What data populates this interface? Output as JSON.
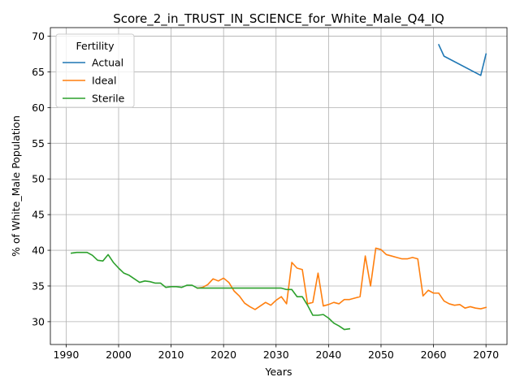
{
  "chart_data": {
    "type": "line",
    "title": "Score_2_in_TRUST_IN_SCIENCE_for_White_Male_Q4_IQ",
    "xlabel": "Years",
    "ylabel": "% of White_Male Population",
    "xlim": [
      1987,
      2074
    ],
    "ylim": [
      26.8,
      71.2
    ],
    "xticks": [
      1990,
      2000,
      2010,
      2020,
      2030,
      2040,
      2050,
      2060,
      2070
    ],
    "yticks": [
      30,
      35,
      40,
      45,
      50,
      55,
      60,
      65,
      70
    ],
    "grid": true,
    "legend": {
      "title": "Fertility",
      "position": "top-left"
    },
    "series": [
      {
        "name": "Actual",
        "color": "#1f77b4",
        "points": [
          [
            2061,
            68.8
          ],
          [
            2062,
            67.2
          ],
          [
            2069,
            64.5
          ],
          [
            2070,
            67.5
          ]
        ]
      },
      {
        "name": "Ideal",
        "color": "#ff7f0e",
        "points": [
          [
            2015,
            34.7
          ],
          [
            2016,
            34.8
          ],
          [
            2017,
            35.2
          ],
          [
            2018,
            36.0
          ],
          [
            2019,
            35.7
          ],
          [
            2020,
            36.1
          ],
          [
            2021,
            35.5
          ],
          [
            2022,
            34.3
          ],
          [
            2023,
            33.6
          ],
          [
            2024,
            32.6
          ],
          [
            2025,
            32.1
          ],
          [
            2026,
            31.7
          ],
          [
            2027,
            32.2
          ],
          [
            2028,
            32.7
          ],
          [
            2029,
            32.3
          ],
          [
            2030,
            33.0
          ],
          [
            2031,
            33.5
          ],
          [
            2032,
            32.5
          ],
          [
            2033,
            38.3
          ],
          [
            2034,
            37.5
          ],
          [
            2035,
            37.3
          ],
          [
            2036,
            32.5
          ],
          [
            2037,
            32.7
          ],
          [
            2038,
            36.8
          ],
          [
            2039,
            32.2
          ],
          [
            2040,
            32.4
          ],
          [
            2041,
            32.7
          ],
          [
            2042,
            32.5
          ],
          [
            2043,
            33.1
          ],
          [
            2044,
            33.1
          ],
          [
            2045,
            33.3
          ],
          [
            2046,
            33.5
          ],
          [
            2047,
            39.2
          ],
          [
            2048,
            35.0
          ],
          [
            2049,
            40.3
          ],
          [
            2050,
            40.1
          ],
          [
            2051,
            39.4
          ],
          [
            2052,
            39.2
          ],
          [
            2053,
            39.0
          ],
          [
            2054,
            38.8
          ],
          [
            2055,
            38.8
          ],
          [
            2056,
            39.0
          ],
          [
            2057,
            38.8
          ],
          [
            2058,
            33.6
          ],
          [
            2059,
            34.4
          ],
          [
            2060,
            34.0
          ],
          [
            2061,
            34.0
          ],
          [
            2062,
            32.9
          ],
          [
            2063,
            32.5
          ],
          [
            2064,
            32.3
          ],
          [
            2065,
            32.4
          ],
          [
            2066,
            31.9
          ],
          [
            2067,
            32.1
          ],
          [
            2068,
            31.9
          ],
          [
            2069,
            31.8
          ],
          [
            2070,
            32.0
          ]
        ]
      },
      {
        "name": "Sterile",
        "color": "#2ca02c",
        "points": [
          [
            1991,
            39.6
          ],
          [
            1992,
            39.7
          ],
          [
            1993,
            39.7
          ],
          [
            1994,
            39.7
          ],
          [
            1995,
            39.3
          ],
          [
            1996,
            38.6
          ],
          [
            1997,
            38.5
          ],
          [
            1998,
            39.4
          ],
          [
            1999,
            38.3
          ],
          [
            2000,
            37.5
          ],
          [
            2001,
            36.8
          ],
          [
            2002,
            36.5
          ],
          [
            2003,
            36.0
          ],
          [
            2004,
            35.5
          ],
          [
            2005,
            35.7
          ],
          [
            2006,
            35.6
          ],
          [
            2007,
            35.4
          ],
          [
            2008,
            35.4
          ],
          [
            2009,
            34.8
          ],
          [
            2010,
            34.9
          ],
          [
            2011,
            34.9
          ],
          [
            2012,
            34.8
          ],
          [
            2013,
            35.1
          ],
          [
            2014,
            35.1
          ],
          [
            2015,
            34.7
          ],
          [
            2016,
            34.7
          ],
          [
            2017,
            34.7
          ],
          [
            2018,
            34.7
          ],
          [
            2019,
            34.7
          ],
          [
            2020,
            34.7
          ],
          [
            2021,
            34.7
          ],
          [
            2022,
            34.7
          ],
          [
            2023,
            34.7
          ],
          [
            2024,
            34.7
          ],
          [
            2025,
            34.7
          ],
          [
            2026,
            34.7
          ],
          [
            2027,
            34.7
          ],
          [
            2028,
            34.7
          ],
          [
            2029,
            34.7
          ],
          [
            2030,
            34.7
          ],
          [
            2031,
            34.7
          ],
          [
            2032,
            34.5
          ],
          [
            2033,
            34.5
          ],
          [
            2034,
            33.5
          ],
          [
            2035,
            33.5
          ],
          [
            2036,
            32.3
          ],
          [
            2037,
            30.9
          ],
          [
            2038,
            30.9
          ],
          [
            2039,
            31.0
          ],
          [
            2040,
            30.5
          ],
          [
            2041,
            29.8
          ],
          [
            2042,
            29.4
          ],
          [
            2043,
            28.9
          ],
          [
            2044,
            29.0
          ]
        ]
      }
    ]
  }
}
